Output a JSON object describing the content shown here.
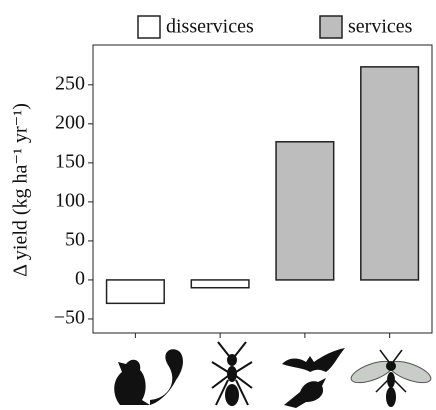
{
  "chart_data": {
    "type": "bar",
    "ylabel": "Δ yield (kg ha⁻¹ yr⁻¹)",
    "categories": [
      null,
      null,
      null,
      null
    ],
    "series": [
      {
        "name": "disservices",
        "color": "#ffffff",
        "values": [
          -30,
          -10,
          null,
          null
        ]
      },
      {
        "name": "services",
        "color": "#bdbdbd",
        "values": [
          null,
          null,
          177,
          273
        ]
      }
    ],
    "ylim": [
      -68,
      301
    ],
    "yticks": [
      {
        "value": -50,
        "label": "−50"
      },
      0,
      50,
      100,
      150,
      200,
      250
    ],
    "grid": false,
    "legend": "top"
  }
}
